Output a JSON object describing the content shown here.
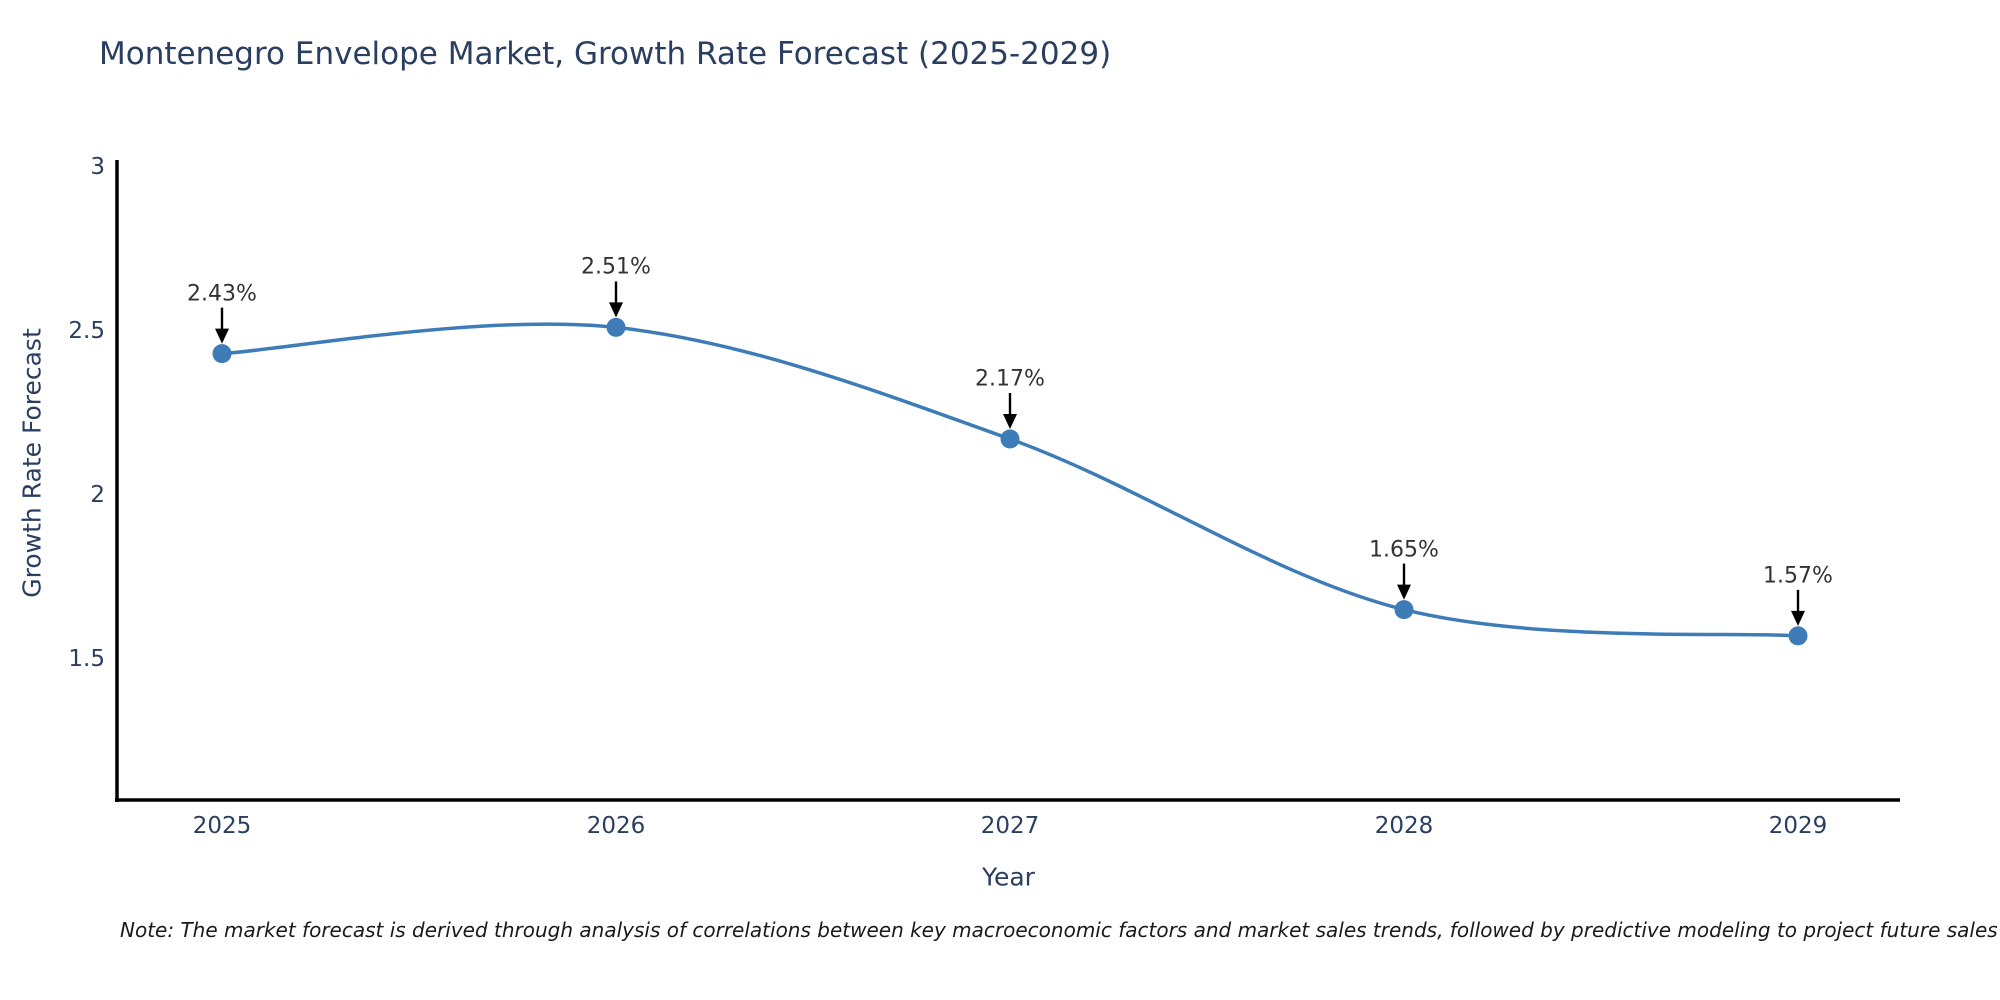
{
  "title": "Montenegro Envelope Market, Growth Rate Forecast (2025-2029)",
  "chart_data": {
    "type": "line",
    "line_shape": "spline",
    "title": "Montenegro Envelope Market, Growth Rate Forecast (2025-2029)",
    "categories": [
      "2025",
      "2026",
      "2027",
      "2028",
      "2029"
    ],
    "values": [
      2.43,
      2.51,
      2.17,
      1.65,
      1.57
    ],
    "point_labels": [
      "2.43%",
      "2.51%",
      "2.17%",
      "1.65%",
      "1.57%"
    ],
    "xlabel": "Year",
    "ylabel": "Growth Rate Forecast",
    "yticks": [
      1.5,
      2,
      2.5,
      3
    ],
    "ytick_labels": [
      "1.5",
      "2",
      "2.5",
      "3"
    ],
    "ylim": [
      1.07,
      3.02
    ],
    "grid": false,
    "legend": "none",
    "colors": {
      "line": "#3e7cb8",
      "marker": "#3e7cb8",
      "axis": "#000000",
      "chart_text": "#2a3f5f",
      "annotation_text": "#333333",
      "arrow": "#000000"
    }
  },
  "note": {
    "text": "Note: The market forecast is derived through analysis of correlations between key macroeconomic factors and market sales trends, followed by predictive modeling to project future sales"
  }
}
